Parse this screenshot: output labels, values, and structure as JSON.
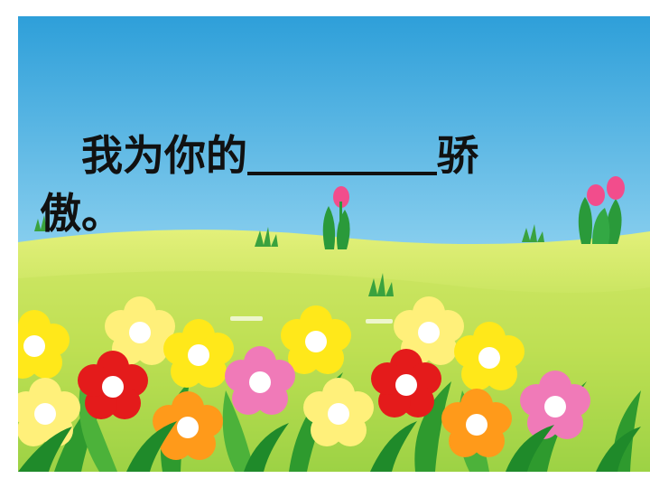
{
  "slide": {
    "sentence_start": "我为你的",
    "sentence_end": "骄傲。"
  },
  "colors": {
    "sky_top": "#2e9fd9",
    "sky_bottom": "#b8e3f5",
    "grass_light": "#d7ec6a",
    "grass": "#8fcf3a",
    "flower_yellow": "#ffe81a",
    "flower_red": "#e41b1b",
    "flower_orange": "#ff9a1a",
    "flower_pink": "#f07ab8",
    "tulip_pink": "#f24d8c",
    "leaf_green": "#2a9a3a"
  },
  "icons": [
    "flower-icon",
    "tulip-icon",
    "grass-tuft-icon"
  ]
}
